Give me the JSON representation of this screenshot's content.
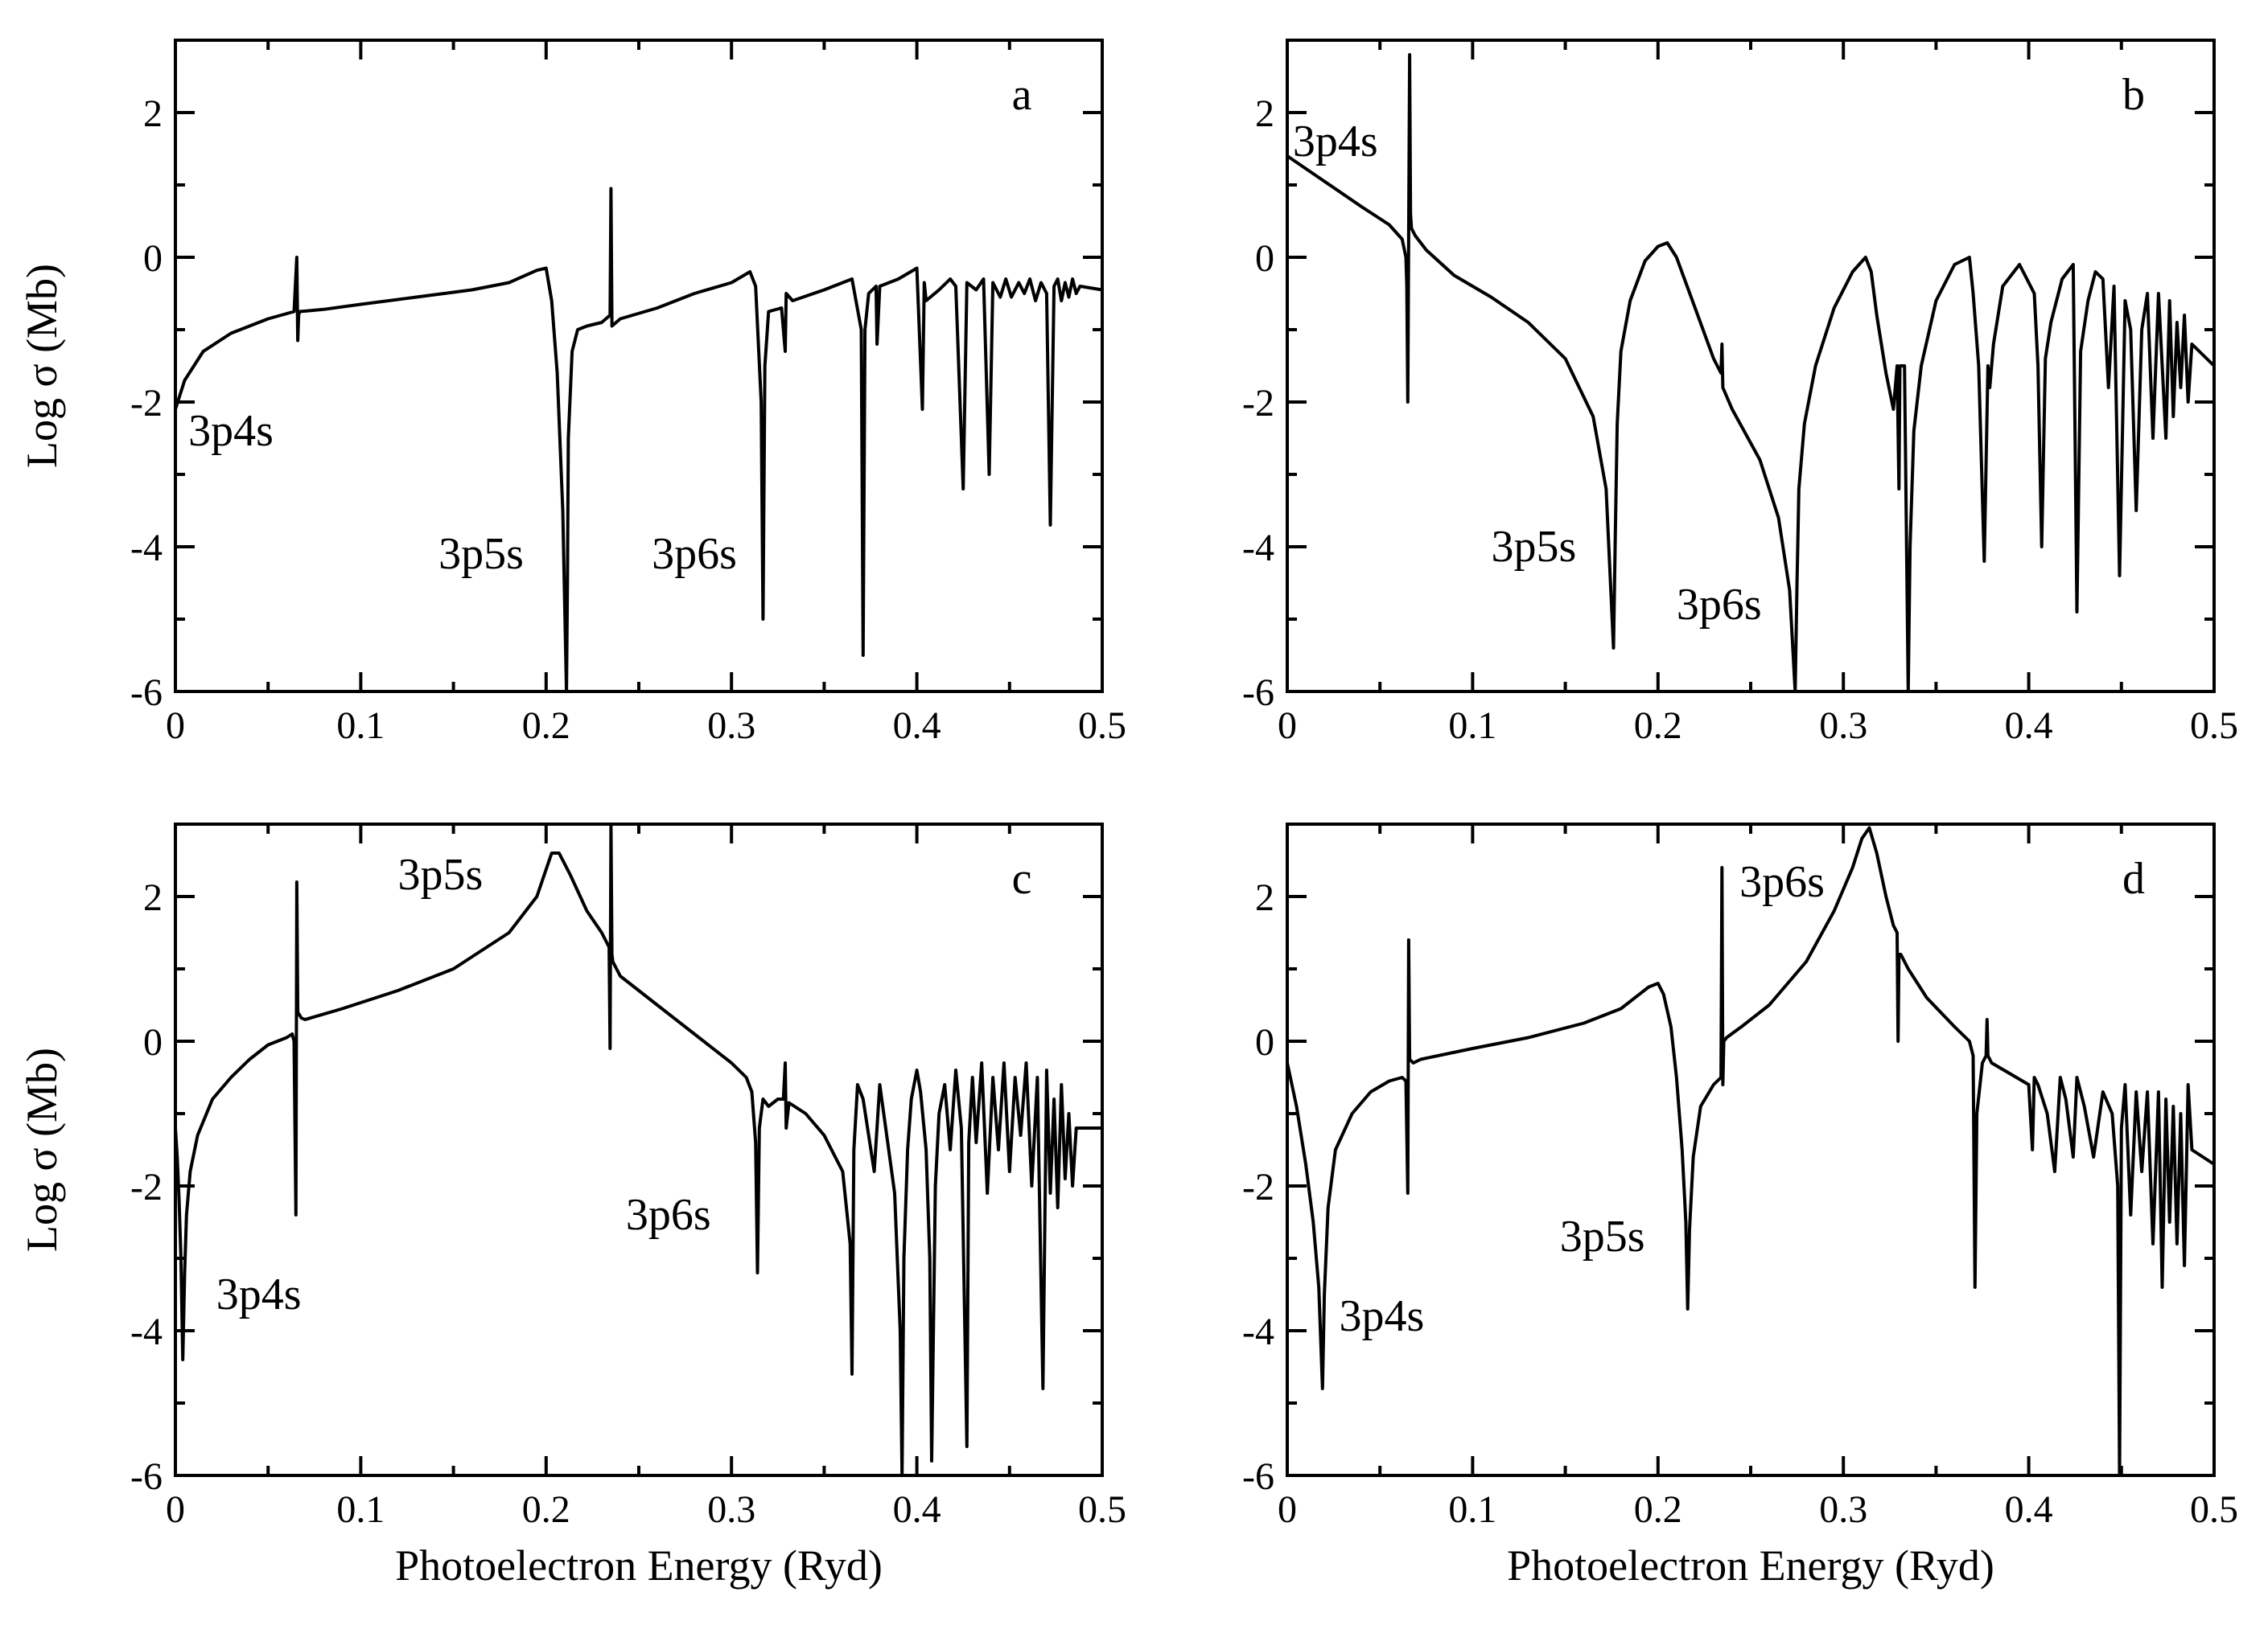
{
  "chart_data": [
    {
      "type": "line",
      "panel": "a",
      "xlabel": "",
      "ylabel": "Log σ (Mb)",
      "xlim": [
        0,
        0.5
      ],
      "ylim": [
        -6,
        3
      ],
      "xticks": [
        "0",
        "0.1",
        "0.2",
        "0.3",
        "0.4",
        "0.5"
      ],
      "yticks": [
        "-6",
        "-4",
        "-2",
        "0",
        "2"
      ],
      "annotations": [
        {
          "text": "3p4s",
          "x": 0.007,
          "y": -2.6
        },
        {
          "text": "3p5s",
          "x": 0.142,
          "y": -4.3
        },
        {
          "text": "3p6s",
          "x": 0.257,
          "y": -4.3
        }
      ],
      "series": [
        {
          "name": "a",
          "x": [
            0,
            0.005,
            0.015,
            0.03,
            0.05,
            0.064,
            0.0655,
            0.066,
            0.0665,
            0.067,
            0.08,
            0.1,
            0.13,
            0.16,
            0.18,
            0.195,
            0.2,
            0.203,
            0.206,
            0.209,
            0.211,
            0.2115,
            0.212,
            0.214,
            0.217,
            0.222,
            0.23,
            0.2345,
            0.235,
            0.2355,
            0.24,
            0.26,
            0.28,
            0.3,
            0.31,
            0.313,
            0.316,
            0.317,
            0.318,
            0.32,
            0.327,
            0.329,
            0.3295,
            0.333,
            0.35,
            0.365,
            0.37,
            0.371,
            0.372,
            0.374,
            0.378,
            0.3785,
            0.38,
            0.39,
            0.4,
            0.403,
            0.404,
            0.405,
            0.412,
            0.418,
            0.421,
            0.425,
            0.427,
            0.432,
            0.436,
            0.439,
            0.441,
            0.445,
            0.448,
            0.451,
            0.455,
            0.458,
            0.461,
            0.464,
            0.467,
            0.47,
            0.472,
            0.474,
            0.476,
            0.478,
            0.48,
            0.482,
            0.484,
            0.486,
            0.488,
            0.5
          ],
          "y": [
            -2.1,
            -1.7,
            -1.3,
            -1.05,
            -0.85,
            -0.75,
            0.0,
            -1.15,
            -0.8,
            -0.75,
            -0.72,
            -0.65,
            -0.55,
            -0.45,
            -0.35,
            -0.18,
            -0.15,
            -0.6,
            -1.6,
            -3.5,
            -6.0,
            -4.5,
            -2.5,
            -1.3,
            -1.0,
            -0.95,
            -0.9,
            -0.8,
            0.95,
            -0.95,
            -0.85,
            -0.7,
            -0.5,
            -0.35,
            -0.2,
            -0.4,
            -2.0,
            -5.0,
            -1.5,
            -0.75,
            -0.7,
            -1.3,
            -0.5,
            -0.6,
            -0.45,
            -0.3,
            -1.0,
            -5.5,
            -1.0,
            -0.5,
            -0.4,
            -1.2,
            -0.4,
            -0.3,
            -0.15,
            -2.1,
            -0.35,
            -0.6,
            -0.45,
            -0.3,
            -0.4,
            -3.2,
            -0.35,
            -0.45,
            -0.3,
            -3.0,
            -0.35,
            -0.55,
            -0.3,
            -0.55,
            -0.35,
            -0.5,
            -0.3,
            -0.6,
            -0.35,
            -0.5,
            -3.7,
            -0.4,
            -0.3,
            -0.6,
            -0.35,
            -0.55,
            -0.3,
            -0.5,
            -0.4,
            -0.45
          ]
        }
      ]
    },
    {
      "type": "line",
      "panel": "b",
      "xlabel": "",
      "ylabel": "",
      "xlim": [
        0,
        0.5
      ],
      "ylim": [
        -6,
        3
      ],
      "xticks": [
        "0",
        "0.1",
        "0.2",
        "0.3",
        "0.4",
        "0.5"
      ],
      "yticks": [
        "-6",
        "-4",
        "-2",
        "0",
        "2"
      ],
      "annotations": [
        {
          "text": "3p4s",
          "x": 0.003,
          "y": 1.4
        },
        {
          "text": "3p5s",
          "x": 0.11,
          "y": -4.2
        },
        {
          "text": "3p6s",
          "x": 0.21,
          "y": -5.0
        }
      ],
      "series": [
        {
          "name": "b",
          "x": [
            0,
            0.02,
            0.04,
            0.055,
            0.062,
            0.064,
            0.0645,
            0.065,
            0.066,
            0.0665,
            0.067,
            0.069,
            0.075,
            0.09,
            0.11,
            0.13,
            0.15,
            0.165,
            0.172,
            0.176,
            0.177,
            0.178,
            0.18,
            0.185,
            0.193,
            0.2,
            0.205,
            0.21,
            0.22,
            0.23,
            0.234,
            0.2345,
            0.235,
            0.24,
            0.255,
            0.265,
            0.271,
            0.274,
            0.275,
            0.276,
            0.279,
            0.285,
            0.295,
            0.305,
            0.312,
            0.315,
            0.318,
            0.323,
            0.327,
            0.329,
            0.33,
            0.3305,
            0.333,
            0.335,
            0.336,
            0.338,
            0.342,
            0.35,
            0.36,
            0.368,
            0.37,
            0.373,
            0.376,
            0.378,
            0.379,
            0.381,
            0.386,
            0.395,
            0.403,
            0.405,
            0.407,
            0.409,
            0.412,
            0.418,
            0.424,
            0.426,
            0.428,
            0.432,
            0.436,
            0.44,
            0.443,
            0.446,
            0.449,
            0.452,
            0.455,
            0.458,
            0.461,
            0.464,
            0.467,
            0.47,
            0.472,
            0.474,
            0.476,
            0.478,
            0.48,
            0.482,
            0.484,
            0.486,
            0.488,
            0.5
          ],
          "y": [
            1.4,
            1.05,
            0.7,
            0.45,
            0.25,
            0.0,
            -0.4,
            -2.0,
            2.8,
            0.6,
            0.4,
            0.3,
            0.1,
            -0.25,
            -0.55,
            -0.9,
            -1.4,
            -2.2,
            -3.2,
            -5.4,
            -3.8,
            -2.3,
            -1.3,
            -0.6,
            -0.05,
            0.15,
            0.2,
            0.0,
            -0.7,
            -1.4,
            -1.6,
            -1.2,
            -1.8,
            -2.1,
            -2.8,
            -3.6,
            -4.6,
            -6.0,
            -4.5,
            -3.2,
            -2.3,
            -1.5,
            -0.7,
            -0.2,
            0.0,
            -0.2,
            -0.8,
            -1.6,
            -2.1,
            -1.5,
            -3.2,
            -1.5,
            -1.5,
            -6.0,
            -4.0,
            -2.4,
            -1.5,
            -0.6,
            -0.1,
            0.0,
            -0.5,
            -1.5,
            -4.2,
            -1.5,
            -1.8,
            -1.2,
            -0.4,
            -0.1,
            -0.5,
            -1.5,
            -4.0,
            -1.4,
            -0.9,
            -0.3,
            -0.1,
            -4.9,
            -1.3,
            -0.6,
            -0.2,
            -0.3,
            -1.8,
            -0.4,
            -4.4,
            -0.6,
            -1.0,
            -3.5,
            -1.0,
            -0.5,
            -2.5,
            -0.5,
            -1.5,
            -2.5,
            -0.6,
            -2.2,
            -0.9,
            -1.8,
            -0.8,
            -2.0,
            -1.2,
            -1.5
          ]
        }
      ]
    },
    {
      "type": "line",
      "panel": "c",
      "xlabel": "Photoelectron Energy (Ryd)",
      "ylabel": "Log σ (Mb)",
      "xlim": [
        0,
        0.5
      ],
      "ylim": [
        -6,
        3
      ],
      "xticks": [
        "0",
        "0.1",
        "0.2",
        "0.3",
        "0.4",
        "0.5"
      ],
      "yticks": [
        "-6",
        "-4",
        "-2",
        "0",
        "2"
      ],
      "annotations": [
        {
          "text": "3p4s",
          "x": 0.022,
          "y": -3.7
        },
        {
          "text": "3p5s",
          "x": 0.12,
          "y": 2.1
        },
        {
          "text": "3p6s",
          "x": 0.243,
          "y": -2.6
        }
      ],
      "series": [
        {
          "name": "c",
          "x": [
            0,
            0.001,
            0.002,
            0.003,
            0.004,
            0.005,
            0.006,
            0.008,
            0.012,
            0.02,
            0.03,
            0.04,
            0.05,
            0.06,
            0.063,
            0.064,
            0.065,
            0.0655,
            0.066,
            0.068,
            0.07,
            0.09,
            0.12,
            0.15,
            0.18,
            0.195,
            0.203,
            0.207,
            0.213,
            0.222,
            0.23,
            0.234,
            0.2345,
            0.235,
            0.2355,
            0.236,
            0.24,
            0.26,
            0.28,
            0.3,
            0.308,
            0.311,
            0.313,
            0.314,
            0.315,
            0.317,
            0.32,
            0.325,
            0.328,
            0.329,
            0.3295,
            0.331,
            0.34,
            0.35,
            0.36,
            0.364,
            0.365,
            0.366,
            0.368,
            0.371,
            0.374,
            0.377,
            0.38,
            0.388,
            0.391,
            0.392,
            0.393,
            0.395,
            0.397,
            0.4,
            0.402,
            0.405,
            0.407,
            0.408,
            0.41,
            0.412,
            0.415,
            0.418,
            0.421,
            0.424,
            0.427,
            0.428,
            0.43,
            0.432,
            0.435,
            0.438,
            0.441,
            0.444,
            0.447,
            0.45,
            0.453,
            0.456,
            0.459,
            0.462,
            0.465,
            0.468,
            0.47,
            0.472,
            0.474,
            0.476,
            0.478,
            0.48,
            0.482,
            0.484,
            0.486,
            0.5
          ],
          "y": [
            -1.2,
            -1.6,
            -2.2,
            -3.0,
            -4.4,
            -3.2,
            -2.4,
            -1.8,
            -1.3,
            -0.8,
            -0.5,
            -0.25,
            -0.05,
            0.05,
            0.1,
            0.0,
            -2.4,
            2.2,
            0.4,
            0.32,
            0.3,
            0.45,
            0.7,
            1.0,
            1.5,
            2.0,
            2.6,
            2.6,
            2.3,
            1.8,
            1.5,
            1.3,
            -0.1,
            3.0,
            1.2,
            1.1,
            0.9,
            0.5,
            0.1,
            -0.3,
            -0.5,
            -0.7,
            -1.4,
            -3.2,
            -1.2,
            -0.8,
            -0.9,
            -0.8,
            -0.8,
            -0.3,
            -1.2,
            -0.85,
            -1.0,
            -1.3,
            -1.8,
            -2.8,
            -4.6,
            -1.5,
            -0.6,
            -0.8,
            -1.3,
            -1.8,
            -0.6,
            -2.1,
            -4.0,
            -6.0,
            -3.0,
            -1.5,
            -0.8,
            -0.4,
            -0.7,
            -1.5,
            -3.0,
            -5.8,
            -2.0,
            -1.0,
            -0.6,
            -1.5,
            -0.4,
            -1.2,
            -5.6,
            -1.4,
            -0.5,
            -1.4,
            -0.3,
            -2.1,
            -0.5,
            -1.5,
            -0.3,
            -1.8,
            -0.5,
            -1.3,
            -0.3,
            -2.0,
            -0.5,
            -4.8,
            -0.4,
            -2.1,
            -0.8,
            -2.3,
            -0.6,
            -1.9,
            -1.0,
            -2.0,
            -1.2,
            -1.2
          ]
        }
      ]
    },
    {
      "type": "line",
      "panel": "d",
      "xlabel": "Photoelectron Energy (Ryd)",
      "ylabel": "",
      "xlim": [
        0,
        0.5
      ],
      "ylim": [
        -6,
        3
      ],
      "xticks": [
        "0",
        "0.1",
        "0.2",
        "0.3",
        "0.4",
        "0.5"
      ],
      "yticks": [
        "-6",
        "-4",
        "-2",
        "0",
        "2"
      ],
      "annotations": [
        {
          "text": "3p4s",
          "x": 0.028,
          "y": -4.0
        },
        {
          "text": "3p5s",
          "x": 0.147,
          "y": -2.9
        },
        {
          "text": "3p6s",
          "x": 0.244,
          "y": 2.0
        }
      ],
      "series": [
        {
          "name": "d",
          "x": [
            0,
            0.005,
            0.01,
            0.014,
            0.017,
            0.019,
            0.02,
            0.022,
            0.026,
            0.035,
            0.045,
            0.055,
            0.062,
            0.064,
            0.065,
            0.0655,
            0.066,
            0.068,
            0.072,
            0.1,
            0.13,
            0.16,
            0.18,
            0.195,
            0.2,
            0.203,
            0.207,
            0.21,
            0.213,
            0.215,
            0.216,
            0.217,
            0.219,
            0.223,
            0.23,
            0.234,
            0.2345,
            0.235,
            0.2355,
            0.237,
            0.245,
            0.26,
            0.28,
            0.295,
            0.305,
            0.31,
            0.314,
            0.318,
            0.323,
            0.327,
            0.329,
            0.3295,
            0.33,
            0.331,
            0.335,
            0.345,
            0.36,
            0.368,
            0.37,
            0.371,
            0.372,
            0.375,
            0.377,
            0.3775,
            0.378,
            0.38,
            0.39,
            0.4,
            0.402,
            0.403,
            0.405,
            0.41,
            0.414,
            0.417,
            0.42,
            0.424,
            0.426,
            0.43,
            0.435,
            0.44,
            0.445,
            0.448,
            0.449,
            0.45,
            0.452,
            0.455,
            0.458,
            0.461,
            0.464,
            0.467,
            0.47,
            0.472,
            0.474,
            0.476,
            0.478,
            0.48,
            0.482,
            0.484,
            0.486,
            0.488,
            0.5
          ],
          "y": [
            -0.3,
            -0.9,
            -1.7,
            -2.5,
            -3.4,
            -4.8,
            -3.5,
            -2.3,
            -1.5,
            -1.0,
            -0.7,
            -0.55,
            -0.5,
            -0.55,
            -2.1,
            1.4,
            -0.25,
            -0.3,
            -0.25,
            -0.1,
            0.05,
            0.25,
            0.45,
            0.75,
            0.8,
            0.65,
            0.2,
            -0.5,
            -1.5,
            -2.5,
            -3.7,
            -2.6,
            -1.6,
            -0.9,
            -0.6,
            -0.5,
            2.4,
            -0.6,
            0.0,
            0.05,
            0.2,
            0.5,
            1.1,
            1.8,
            2.4,
            2.8,
            2.95,
            2.6,
            2.0,
            1.6,
            1.5,
            0.0,
            1.2,
            1.2,
            1.0,
            0.6,
            0.2,
            0.0,
            -0.2,
            -3.4,
            -1.0,
            -0.3,
            -0.2,
            0.3,
            -0.2,
            -0.3,
            -0.45,
            -0.6,
            -1.5,
            -0.5,
            -0.6,
            -1.0,
            -1.8,
            -0.5,
            -0.8,
            -1.6,
            -0.5,
            -0.9,
            -1.6,
            -0.7,
            -1.0,
            -2.0,
            -6.0,
            -1.2,
            -0.6,
            -2.4,
            -0.7,
            -1.8,
            -0.7,
            -2.8,
            -0.7,
            -3.4,
            -0.8,
            -2.5,
            -0.9,
            -2.8,
            -1.0,
            -3.1,
            -0.6,
            -1.5,
            -1.7
          ]
        }
      ]
    }
  ]
}
